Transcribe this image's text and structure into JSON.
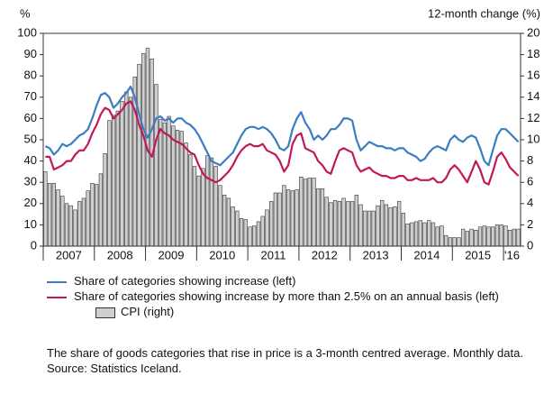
{
  "chart_data": {
    "type": "combo",
    "y_label": "%",
    "y2_label": "12-month change (%)",
    "categories": [
      null,
      null,
      null,
      null,
      null,
      null,
      "2007",
      null,
      null,
      null,
      null,
      null,
      null,
      null,
      null,
      null,
      null,
      null,
      "2008",
      null,
      null,
      null,
      null,
      null,
      null,
      null,
      null,
      null,
      null,
      null,
      "2009",
      null,
      null,
      null,
      null,
      null,
      null,
      null,
      null,
      null,
      null,
      null,
      "2010",
      null,
      null,
      null,
      null,
      null,
      null,
      null,
      null,
      null,
      null,
      null,
      "2011",
      null,
      null,
      null,
      null,
      null,
      null,
      null,
      null,
      null,
      null,
      null,
      "2012",
      null,
      null,
      null,
      null,
      null,
      null,
      null,
      null,
      null,
      null,
      null,
      "2013",
      null,
      null,
      null,
      null,
      null,
      null,
      null,
      null,
      null,
      null,
      null,
      "2014",
      null,
      null,
      null,
      null,
      null,
      null,
      null,
      null,
      null,
      null,
      null,
      "2015",
      null,
      null,
      null,
      null,
      null,
      null,
      null,
      "'16",
      null
    ],
    "series": [
      {
        "name": "CPI (right)",
        "type": "bar",
        "axis": "y2",
        "color": "#cfcfcf",
        "values": [
          7.0,
          5.9,
          5.9,
          5.3,
          4.7,
          4.0,
          3.8,
          3.4,
          4.2,
          4.5,
          5.2,
          5.9,
          5.8,
          6.8,
          8.7,
          11.8,
          12.3,
          12.7,
          13.6,
          14.5,
          14.0,
          15.9,
          17.1,
          18.1,
          18.6,
          17.6,
          15.2,
          11.9,
          11.6,
          12.2,
          11.3,
          10.9,
          10.8,
          9.7,
          8.6,
          7.5,
          6.6,
          7.3,
          8.5,
          8.3,
          7.5,
          5.7,
          4.8,
          4.5,
          3.7,
          3.3,
          2.6,
          2.5,
          1.8,
          1.9,
          2.3,
          2.8,
          3.4,
          4.2,
          5.0,
          5.0,
          5.7,
          5.3,
          5.2,
          5.3,
          6.5,
          6.3,
          6.4,
          6.4,
          5.4,
          5.4,
          4.6,
          4.1,
          4.3,
          4.2,
          4.5,
          4.2,
          4.2,
          4.8,
          3.9,
          3.3,
          3.3,
          3.3,
          3.8,
          4.3,
          3.9,
          3.6,
          3.7,
          4.2,
          3.1,
          2.1,
          2.2,
          2.3,
          2.4,
          2.2,
          2.4,
          2.2,
          1.8,
          1.9,
          1.0,
          0.8,
          0.8,
          0.8,
          1.6,
          1.4,
          1.6,
          1.5,
          1.8,
          1.9,
          1.8,
          1.8,
          2.0,
          2.0,
          1.9,
          1.5,
          1.6,
          1.6
        ]
      },
      {
        "name": "Share of categories showing increase (left)",
        "type": "line",
        "color": "#3b7dc4",
        "values": [
          47,
          46,
          43,
          45,
          48,
          47,
          48,
          50,
          52,
          53,
          55,
          60,
          66,
          71,
          72,
          70,
          65,
          67,
          70,
          72,
          75,
          70,
          62,
          55,
          51,
          55,
          60,
          61,
          59,
          60,
          58,
          60,
          60,
          58,
          57,
          55,
          52,
          48,
          44,
          40,
          39,
          38,
          40,
          42,
          44,
          48,
          52,
          55,
          56,
          56,
          55,
          56,
          55,
          53,
          50,
          46,
          45,
          47,
          55,
          60,
          63,
          58,
          55,
          50,
          52,
          50,
          52,
          55,
          55,
          57,
          60,
          60,
          59,
          50,
          45,
          47,
          49,
          48,
          47,
          47,
          46,
          46,
          45,
          46,
          46,
          44,
          43,
          42,
          40,
          41,
          44,
          46,
          47,
          46,
          45,
          50,
          52,
          50,
          49,
          51,
          52,
          51,
          46,
          40,
          38,
          45,
          52,
          55,
          55,
          53,
          51,
          49
        ]
      },
      {
        "name": "Share of categories showing increase by more than 2.5% on an annual basis (left)",
        "type": "line",
        "color": "#c0185a",
        "values": [
          42,
          42,
          36,
          37,
          38,
          40,
          40,
          43,
          45,
          45,
          48,
          53,
          57,
          62,
          65,
          64,
          60,
          62,
          64,
          67,
          68,
          64,
          57,
          52,
          45,
          42,
          50,
          55,
          53,
          52,
          50,
          49,
          48,
          46,
          44,
          43,
          38,
          34,
          32,
          31,
          30,
          31,
          33,
          35,
          38,
          42,
          45,
          47,
          48,
          47,
          47,
          48,
          45,
          44,
          43,
          40,
          35,
          38,
          48,
          52,
          53,
          46,
          45,
          44,
          40,
          38,
          35,
          34,
          40,
          45,
          46,
          45,
          44,
          38,
          35,
          36,
          37,
          35,
          34,
          33,
          33,
          32,
          32,
          33,
          33,
          31,
          31,
          32,
          31,
          31,
          31,
          32,
          30,
          30,
          32,
          36,
          38,
          36,
          33,
          30,
          35,
          40,
          36,
          30,
          29,
          35,
          42,
          44,
          41,
          37,
          35,
          33
        ]
      }
    ],
    "ylim": [
      0,
      100
    ],
    "yticks": [
      0,
      10,
      20,
      30,
      40,
      50,
      60,
      70,
      80,
      90,
      100
    ],
    "y2lim": [
      0,
      20
    ],
    "y2ticks": [
      0,
      2,
      4,
      6,
      8,
      10,
      12,
      14,
      16,
      18,
      20
    ],
    "grid": false
  },
  "notes": [
    "The share of goods categories that rise in price is a 3-month centred average. Monthly data.",
    "Source: Statistics Iceland."
  ]
}
